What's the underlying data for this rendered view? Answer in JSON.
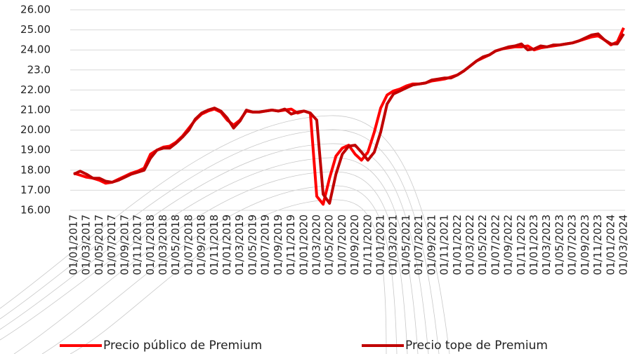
{
  "chart_data": {
    "type": "line",
    "categories": [
      "01/01/2017",
      null,
      "01/03/2017",
      null,
      "01/05/2017",
      null,
      "01/07/2017",
      null,
      "01/09/2017",
      null,
      "01/11/2017",
      null,
      "01/01/2018",
      null,
      "01/03/2018",
      null,
      "01/05/2018",
      null,
      "01/07/2018",
      null,
      "01/09/2018",
      null,
      "01/11/2018",
      null,
      "01/01/2019",
      null,
      "01/03/2019",
      null,
      "01/05/2019",
      null,
      "01/07/2019",
      null,
      "01/09/2019",
      null,
      "01/11/2019",
      null,
      "01/01/2020",
      null,
      "01/03/2020",
      null,
      "01/05/2020",
      null,
      "01/07/2020",
      null,
      "01/09/2020",
      null,
      "01/11/2020",
      null,
      "01/01/2021",
      null,
      "01/03/2021",
      null,
      "01/05/2021",
      null,
      "01/07/2021",
      null,
      "01/09/2021",
      null,
      "01/11/2021",
      null,
      "01/01/2022",
      null,
      "01/03/2022",
      null,
      "01/05/2022",
      null,
      "01/07/2022",
      null,
      "01/09/2022",
      null,
      "01/11/2022",
      null,
      "01/01/2023",
      null,
      "01/03/2023",
      null,
      "01/05/2023",
      null,
      "01/07/2023",
      null,
      "01/09/2023",
      null,
      "01/11/2023",
      null,
      "01/01/2024",
      null,
      "01/03/2024"
    ],
    "series": [
      {
        "name": "Precio público de Premium",
        "color": "#ff0000",
        "values": [
          17.85,
          17.75,
          17.65,
          17.6,
          17.5,
          17.35,
          17.4,
          17.55,
          17.7,
          17.85,
          17.95,
          18.1,
          18.8,
          19.0,
          19.15,
          19.2,
          19.4,
          19.7,
          20.1,
          20.5,
          20.8,
          20.95,
          21.05,
          20.9,
          20.5,
          20.25,
          20.5,
          20.95,
          20.9,
          20.9,
          20.95,
          21.0,
          20.95,
          21.0,
          21.05,
          20.85,
          20.95,
          20.85,
          16.7,
          16.3,
          17.6,
          18.7,
          19.1,
          19.25,
          18.8,
          18.5,
          18.9,
          19.9,
          21.1,
          21.75,
          21.95,
          22.05,
          22.2,
          22.3,
          22.3,
          22.35,
          22.45,
          22.5,
          22.55,
          22.65,
          22.75,
          22.95,
          23.2,
          23.45,
          23.6,
          23.75,
          23.95,
          24.05,
          24.1,
          24.15,
          24.15,
          24.2,
          24.0,
          24.1,
          24.15,
          24.2,
          24.25,
          24.3,
          24.35,
          24.45,
          24.55,
          24.65,
          24.7,
          24.5,
          24.25,
          24.4,
          25.1
        ]
      },
      {
        "name": "Precio tope de Premium",
        "color": "#c00000",
        "values": [
          17.8,
          17.95,
          17.8,
          17.6,
          17.6,
          17.45,
          17.4,
          17.5,
          17.65,
          17.8,
          17.9,
          18.0,
          18.6,
          19.0,
          19.1,
          19.1,
          19.35,
          19.65,
          20.0,
          20.55,
          20.85,
          21.0,
          21.1,
          20.95,
          20.6,
          20.1,
          20.45,
          21.0,
          20.9,
          20.9,
          20.95,
          21.0,
          20.95,
          21.05,
          20.8,
          20.9,
          20.95,
          20.85,
          20.5,
          16.8,
          16.35,
          17.8,
          18.8,
          19.2,
          19.25,
          18.9,
          18.5,
          18.9,
          19.9,
          21.3,
          21.8,
          21.95,
          22.1,
          22.25,
          22.3,
          22.35,
          22.5,
          22.55,
          22.6,
          22.6,
          22.75,
          22.95,
          23.2,
          23.45,
          23.65,
          23.75,
          23.95,
          24.05,
          24.15,
          24.2,
          24.3,
          24.0,
          24.05,
          24.2,
          24.15,
          24.25,
          24.25,
          24.3,
          24.35,
          24.45,
          24.6,
          24.75,
          24.8,
          24.5,
          24.3,
          24.3,
          24.8
        ]
      }
    ],
    "ylim": [
      16,
      26
    ],
    "yticks": [
      {
        "value": 16,
        "label": "16.00"
      },
      {
        "value": 17,
        "label": "17.00"
      },
      {
        "value": 18,
        "label": "18.00"
      },
      {
        "value": 19,
        "label": "19.00"
      },
      {
        "value": 20,
        "label": "20.00"
      },
      {
        "value": 21,
        "label": "21.00"
      },
      {
        "value": 22,
        "label": "22.00"
      },
      {
        "value": 23,
        "label": "23.0"
      },
      {
        "value": 24,
        "label": "24.00"
      },
      {
        "value": 25,
        "label": "25.00"
      },
      {
        "value": 26,
        "label": "26.00"
      }
    ],
    "grid": true,
    "legend": "bottom"
  }
}
